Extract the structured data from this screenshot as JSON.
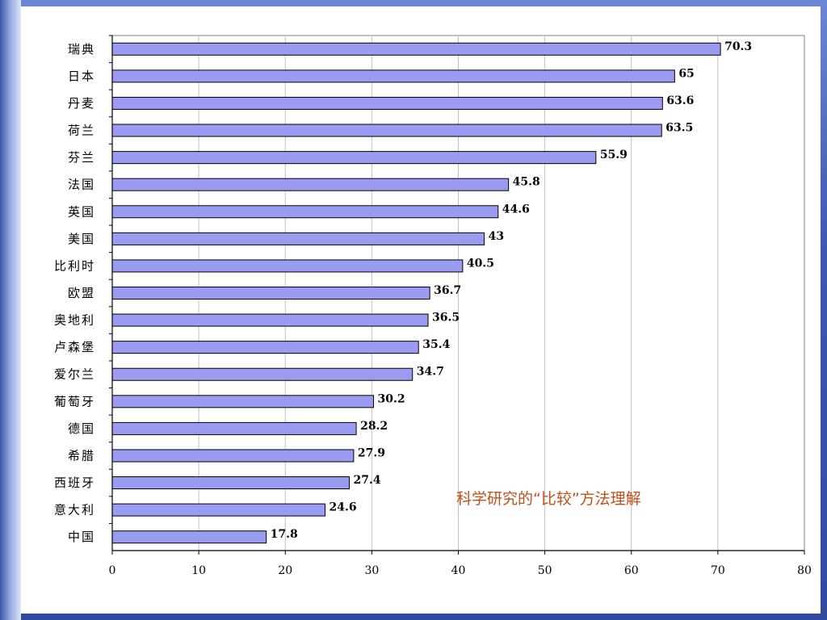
{
  "slide": {
    "note": "科学研究的“比较”方法理解"
  },
  "colors": {
    "bar_fill": "#9a9cf2",
    "bar_stroke": "#000000",
    "note_color": "#c0501a"
  },
  "chart_data": {
    "type": "bar",
    "orientation": "horizontal",
    "categories": [
      "瑞典",
      "日本",
      "丹麦",
      "荷兰",
      "芬兰",
      "法国",
      "英国",
      "美国",
      "比利时",
      "欧盟",
      "奥地利",
      "卢森堡",
      "爱尔兰",
      "葡萄牙",
      "德国",
      "希腊",
      "西班牙",
      "意大利",
      "中国"
    ],
    "values": [
      70.3,
      65,
      63.6,
      63.5,
      55.9,
      45.8,
      44.6,
      43,
      40.5,
      36.7,
      36.5,
      35.4,
      34.7,
      30.2,
      28.2,
      27.9,
      27.4,
      24.6,
      17.8
    ],
    "value_labels": [
      "70.3",
      "65",
      "63.6",
      "63.5",
      "55.9",
      "45.8",
      "44.6",
      "43",
      "40.5",
      "36.7",
      "36.5",
      "35.4",
      "34.7",
      "30.2",
      "28.2",
      "27.9",
      "27.4",
      "24.6",
      "17.8"
    ],
    "xlim": [
      0,
      80
    ],
    "xticks": [
      0,
      10,
      20,
      30,
      40,
      50,
      60,
      70,
      80
    ],
    "grid": true,
    "title": "",
    "xlabel": "",
    "ylabel": ""
  }
}
